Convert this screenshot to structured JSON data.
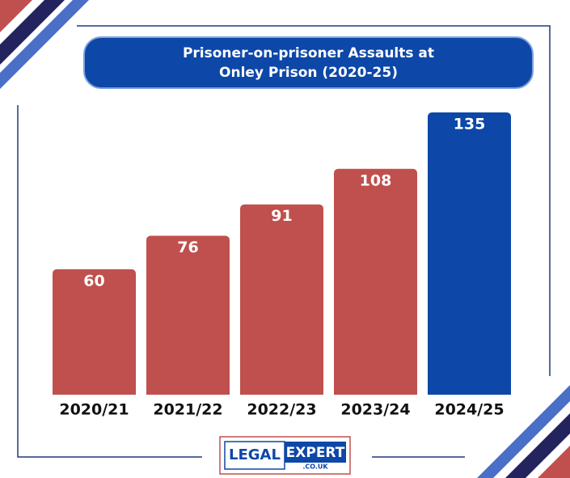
{
  "chart_data": {
    "type": "bar",
    "title": "Prisoner-on-prisoner Assaults at Onley Prison (2020-25)",
    "categories": [
      "2020/21",
      "2021/22",
      "2022/23",
      "2023/24",
      "2024/25"
    ],
    "values": [
      60,
      76,
      91,
      108,
      135
    ],
    "colors": [
      "#c0504d",
      "#c0504d",
      "#c0504d",
      "#c0504d",
      "#0d47a8"
    ]
  },
  "logo": {
    "left": "LEGAL",
    "right": "EXPERT",
    "domain": ".CO.UK"
  }
}
